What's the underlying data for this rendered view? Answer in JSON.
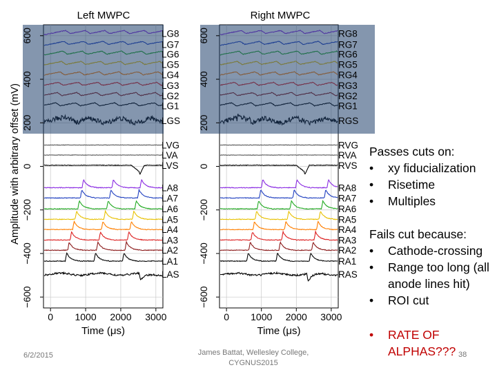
{
  "chart_data": [
    {
      "type": "line",
      "title": "Left MWPC",
      "xlabel": "Time (μs)",
      "ylabel": "Amplitude with arbitrary offset (mV)",
      "xlim": [
        -200,
        3200
      ],
      "ylim": [
        -650,
        650
      ],
      "xticks": [
        0,
        1000,
        2000,
        3000
      ],
      "yticks": [
        -600,
        -400,
        -200,
        0,
        200,
        400,
        600
      ],
      "grid": true,
      "highlight_box": {
        "y_range": [
          150,
          650
        ],
        "color": "#1f3f6b"
      },
      "series": [
        {
          "name": "LG8",
          "offset": 610,
          "color": "#8a2be2",
          "kind": "periodic"
        },
        {
          "name": "LG7",
          "offset": 560,
          "color": "#2040c0",
          "kind": "periodic"
        },
        {
          "name": "LG6",
          "offset": 515,
          "color": "#22aa22",
          "kind": "periodic"
        },
        {
          "name": "LG5",
          "offset": 468,
          "color": "#e8c000",
          "kind": "periodic"
        },
        {
          "name": "LG4",
          "offset": 420,
          "color": "#ff7f00",
          "kind": "periodic"
        },
        {
          "name": "LG3",
          "offset": 372,
          "color": "#dd2020",
          "kind": "periodic"
        },
        {
          "name": "LG2",
          "offset": 325,
          "color": "#8b1a1a",
          "kind": "periodic"
        },
        {
          "name": "LG1",
          "offset": 278,
          "color": "#000000",
          "kind": "periodic"
        },
        {
          "name": "LGS",
          "offset": 210,
          "color": "#000000",
          "kind": "noisy"
        },
        {
          "name": "LVG",
          "offset": 98,
          "color": "#555555",
          "kind": "flat"
        },
        {
          "name": "LVA",
          "offset": 52,
          "color": "#555555",
          "kind": "flat"
        },
        {
          "name": "LVS",
          "offset": 5,
          "color": "#000000",
          "kind": "dip",
          "dip_time": 2550
        },
        {
          "name": "LA8",
          "offset": -98,
          "color": "#8a2be2",
          "kind": "pulse",
          "pulse_times": [
            900,
            1750,
            2550
          ]
        },
        {
          "name": "LA7",
          "offset": -145,
          "color": "#2040c0",
          "kind": "pulse",
          "pulse_times": [
            850,
            1680,
            2480
          ]
        },
        {
          "name": "LA6",
          "offset": -195,
          "color": "#22aa22",
          "kind": "pulse",
          "pulse_times": [
            780,
            1600,
            2400
          ]
        },
        {
          "name": "LA5",
          "offset": -243,
          "color": "#e8c000",
          "kind": "pulse",
          "pulse_times": [
            700,
            1520,
            2330
          ]
        },
        {
          "name": "LA4",
          "offset": -290,
          "color": "#ff7f00",
          "kind": "pulse",
          "pulse_times": [
            630,
            1450,
            2260
          ]
        },
        {
          "name": "LA3",
          "offset": -338,
          "color": "#dd2020",
          "kind": "pulse",
          "pulse_times": [
            560,
            1380,
            2190
          ]
        },
        {
          "name": "LA2",
          "offset": -385,
          "color": "#8b1a1a",
          "kind": "pulse",
          "pulse_times": [
            490,
            1310,
            2120
          ]
        },
        {
          "name": "LA1",
          "offset": -435,
          "color": "#000000",
          "kind": "pulse",
          "pulse_times": [
            420,
            1240,
            2050
          ]
        },
        {
          "name": "LAS",
          "offset": -495,
          "color": "#000000",
          "kind": "negpulse",
          "pulse_times": [
            2520
          ]
        }
      ]
    },
    {
      "type": "line",
      "title": "Right MWPC",
      "xlabel": "Time (μs)",
      "ylabel": "",
      "xlim": [
        -200,
        3200
      ],
      "ylim": [
        -650,
        650
      ],
      "xticks": [
        0,
        1000,
        2000,
        3000
      ],
      "yticks": [
        -600,
        -400,
        -200,
        0,
        200,
        400,
        600
      ],
      "grid": true,
      "highlight_box": {
        "y_range": [
          150,
          650
        ],
        "color": "#1f3f6b"
      },
      "series": [
        {
          "name": "RG8",
          "offset": 610,
          "color": "#8a2be2",
          "kind": "periodic"
        },
        {
          "name": "RG7",
          "offset": 560,
          "color": "#2040c0",
          "kind": "periodic"
        },
        {
          "name": "RG6",
          "offset": 515,
          "color": "#22aa22",
          "kind": "periodic"
        },
        {
          "name": "RG5",
          "offset": 468,
          "color": "#e8c000",
          "kind": "periodic"
        },
        {
          "name": "RG4",
          "offset": 420,
          "color": "#ff7f00",
          "kind": "periodic"
        },
        {
          "name": "RG3",
          "offset": 372,
          "color": "#dd2020",
          "kind": "periodic"
        },
        {
          "name": "RG2",
          "offset": 325,
          "color": "#8b1a1a",
          "kind": "periodic"
        },
        {
          "name": "RG1",
          "offset": 278,
          "color": "#000000",
          "kind": "periodic"
        },
        {
          "name": "RGS",
          "offset": 210,
          "color": "#000000",
          "kind": "noisy"
        },
        {
          "name": "RVG",
          "offset": 98,
          "color": "#555555",
          "kind": "flat"
        },
        {
          "name": "RVA",
          "offset": 52,
          "color": "#555555",
          "kind": "flat"
        },
        {
          "name": "RVS",
          "offset": 5,
          "color": "#000000",
          "kind": "dip",
          "dip_time": 2250
        },
        {
          "name": "RA8",
          "offset": -98,
          "color": "#8a2be2",
          "kind": "pulse",
          "pulse_times": [
            1000,
            1980,
            2880
          ]
        },
        {
          "name": "RA7",
          "offset": -145,
          "color": "#2040c0",
          "kind": "pulse",
          "pulse_times": [
            940,
            1900,
            2800
          ]
        },
        {
          "name": "RA6",
          "offset": -195,
          "color": "#22aa22",
          "kind": "pulse",
          "pulse_times": [
            880,
            1820,
            2720
          ]
        },
        {
          "name": "RA5",
          "offset": -243,
          "color": "#e8c000",
          "kind": "pulse",
          "pulse_times": [
            820,
            1740,
            2650
          ]
        },
        {
          "name": "RA4",
          "offset": -290,
          "color": "#ff7f00",
          "kind": "pulse",
          "pulse_times": [
            760,
            1660,
            2580
          ]
        },
        {
          "name": "RA3",
          "offset": -338,
          "color": "#dd2020",
          "kind": "pulse",
          "pulse_times": [
            700,
            1580,
            2510
          ]
        },
        {
          "name": "RA2",
          "offset": -385,
          "color": "#8b1a1a",
          "kind": "pulse",
          "pulse_times": [
            640,
            1500,
            2440
          ]
        },
        {
          "name": "RA1",
          "offset": -435,
          "color": "#000000",
          "kind": "pulse",
          "pulse_times": [
            580,
            1420,
            2370
          ]
        },
        {
          "name": "RAS",
          "offset": -495,
          "color": "#000000",
          "kind": "negpulse",
          "pulse_times": [
            2300
          ]
        }
      ]
    }
  ],
  "notes": {
    "passes_heading": "Passes cuts on:",
    "passes_items": [
      "xy fiducialization",
      "Risetime",
      "Multiples"
    ],
    "fails_heading": "Fails cut because:",
    "fails_items": [
      "Cathode-crossing",
      "Range too long (all anode lines hit)",
      "ROI cut"
    ],
    "rate_text": "RATE OF ALPHAS???",
    "rate_color": "#c00000"
  },
  "footer": {
    "date": "6/2/2015",
    "author_line1": "James Battat, Wellesley College,",
    "author_line2": "CYGNUS2015",
    "page": "38"
  }
}
